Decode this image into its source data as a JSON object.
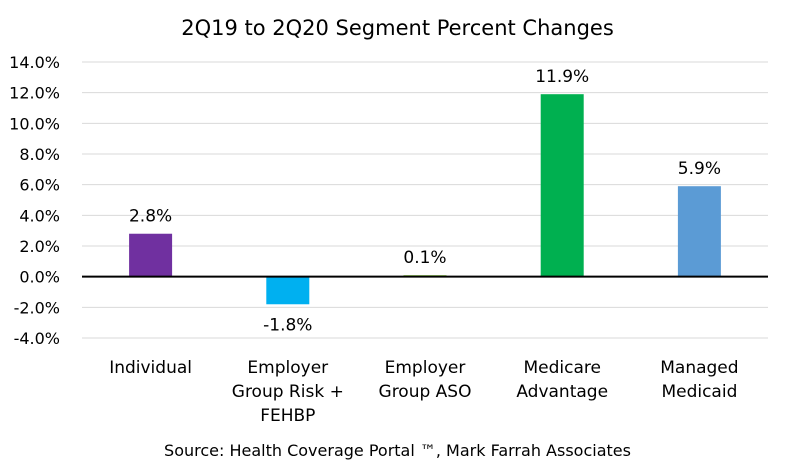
{
  "chart_data": {
    "type": "bar",
    "title": "2Q19 to 2Q20 Segment Percent Changes",
    "categories": [
      [
        "Individual"
      ],
      [
        "Employer",
        "Group Risk +",
        "FEHBP"
      ],
      [
        "Employer",
        "Group ASO"
      ],
      [
        "Medicare",
        "Advantage"
      ],
      [
        "Managed",
        "Medicaid"
      ]
    ],
    "values": [
      2.8,
      -1.8,
      0.1,
      11.9,
      5.9
    ],
    "data_labels": [
      "2.8%",
      "-1.8%",
      "0.1%",
      "11.9%",
      "5.9%"
    ],
    "colors": [
      "#7030A0",
      "#00B0F0",
      "#92D050",
      "#00B050",
      "#5B9BD5"
    ],
    "ylim": [
      -4,
      14
    ],
    "yticks": [
      14,
      12,
      10,
      8,
      6,
      4,
      2,
      0,
      -2,
      -4
    ],
    "ytick_labels": [
      "14.0%",
      "12.0%",
      "10.0%",
      "8.0%",
      "6.0%",
      "4.0%",
      "2.0%",
      "0.0%",
      "-2.0%",
      "-4.0%"
    ],
    "grid": true,
    "legend": false,
    "source": "Source: Health Coverage Portal ™, Mark Farrah Associates"
  }
}
